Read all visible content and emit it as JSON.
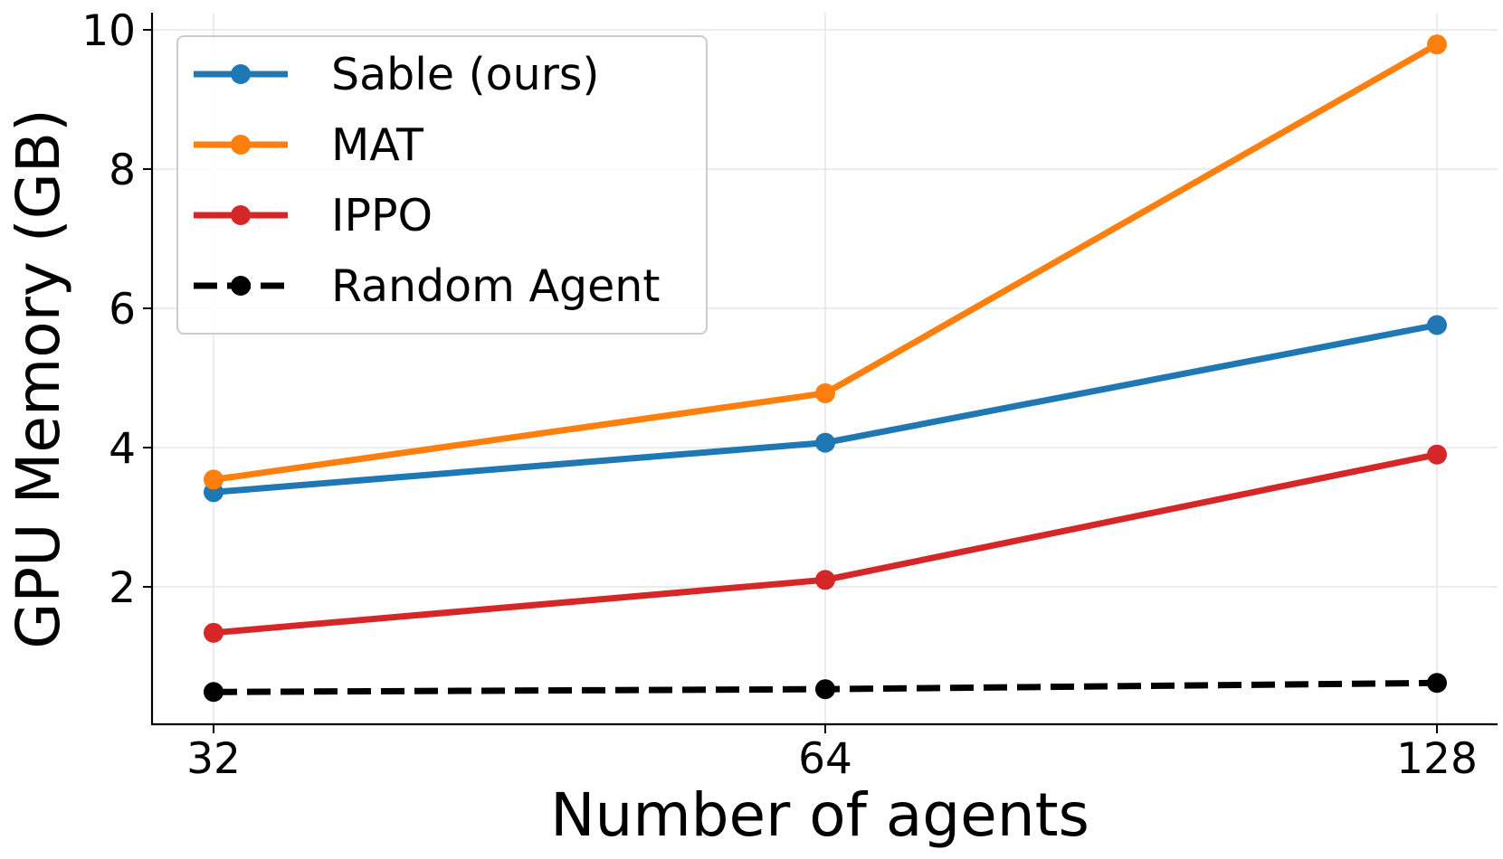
{
  "chart_data": {
    "type": "line",
    "title": "",
    "xlabel": "Number of agents",
    "ylabel": "GPU Memory (GB)",
    "x": [
      32,
      64,
      128
    ],
    "x_tick_labels": [
      "32",
      "64",
      "128"
    ],
    "x_scale": "log2",
    "y_ticks": [
      2,
      4,
      6,
      8,
      10
    ],
    "y_tick_labels": [
      "2",
      "4",
      "6",
      "8",
      "10"
    ],
    "ylim": [
      0,
      10.2
    ],
    "grid": true,
    "legend_position": "top-left",
    "series": [
      {
        "name": "Sable (ours)",
        "color": "#1f77b4",
        "dashed": false,
        "values": [
          3.36,
          4.07,
          5.76
        ]
      },
      {
        "name": "MAT",
        "color": "#ff7f0e",
        "dashed": false,
        "values": [
          3.54,
          4.78,
          9.79
        ]
      },
      {
        "name": "IPPO",
        "color": "#d62728",
        "dashed": false,
        "values": [
          1.34,
          2.1,
          3.9
        ]
      },
      {
        "name": "Random Agent",
        "color": "#000000",
        "dashed": true,
        "values": [
          0.49,
          0.53,
          0.62
        ]
      }
    ]
  }
}
